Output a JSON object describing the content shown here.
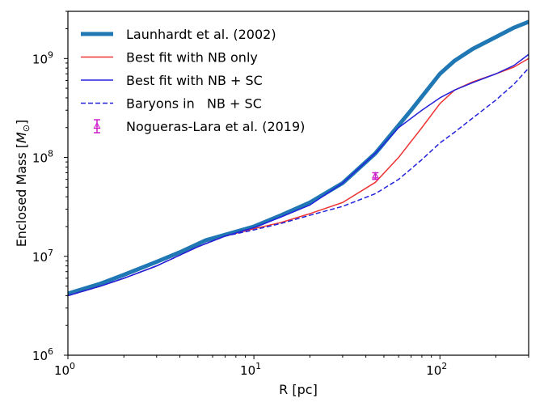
{
  "chart_data": {
    "type": "line",
    "xlabel": "R [pc]",
    "ylabel": "Enclosed Mass [M_⊙]",
    "ylabel_parts": {
      "prefix": "Enclosed Mass [",
      "symbol": "M",
      "subscript": "⊙",
      "suffix": "]"
    },
    "xscale": "log",
    "yscale": "log",
    "xlim": [
      1,
      300
    ],
    "ylim": [
      1000000,
      3000000000
    ],
    "grid": false,
    "legend_position": "upper-left",
    "x_ticks": [
      {
        "value": 1,
        "base": "10",
        "exp": "0"
      },
      {
        "value": 10,
        "base": "10",
        "exp": "1"
      },
      {
        "value": 100,
        "base": "10",
        "exp": "2"
      }
    ],
    "y_ticks": [
      {
        "value": 1000000,
        "base": "10",
        "exp": "6"
      },
      {
        "value": 10000000,
        "base": "10",
        "exp": "7"
      },
      {
        "value": 100000000,
        "base": "10",
        "exp": "8"
      },
      {
        "value": 1000000000,
        "base": "10",
        "exp": "9"
      }
    ],
    "series": [
      {
        "name": "Launhardt et al. (2002)",
        "color": "#1f77b4",
        "style": "thick",
        "x": [
          1,
          1.5,
          2,
          3,
          4,
          5.5,
          7,
          10,
          14,
          20,
          30,
          45,
          70,
          100,
          120,
          150,
          200,
          250,
          300
        ],
        "y": [
          4200000,
          5300000,
          6500000,
          8800000,
          11000000,
          14500000,
          16500000,
          20000000,
          26000000,
          35000000,
          55000000,
          110000000,
          300000000,
          700000000,
          950000000,
          1250000000,
          1650000000,
          2050000000,
          2350000000
        ]
      },
      {
        "name": "Best fit with NB only",
        "color": "#ee3333",
        "style": "solid",
        "x": [
          1,
          1.5,
          2,
          3,
          5,
          7,
          10,
          14,
          20,
          30,
          45,
          60,
          80,
          100,
          120,
          150,
          200,
          250,
          300
        ],
        "y": [
          4000000,
          5000000,
          6000000,
          8000000,
          12500000,
          16000000,
          19000000,
          22000000,
          27000000,
          35000000,
          56000000,
          100000000,
          200000000,
          350000000,
          480000000,
          580000000,
          700000000,
          820000000,
          1000000000
        ]
      },
      {
        "name": "Best fit with NB + SC",
        "color": "#2222dd",
        "style": "solid",
        "x": [
          1,
          1.5,
          2,
          3,
          5,
          7,
          10,
          14,
          20,
          30,
          45,
          60,
          80,
          100,
          120,
          150,
          200,
          250,
          300
        ],
        "y": [
          4000000,
          5000000,
          6000000,
          8000000,
          12500000,
          16000000,
          19500000,
          25000000,
          33000000,
          55000000,
          110000000,
          200000000,
          300000000,
          400000000,
          480000000,
          570000000,
          700000000,
          850000000,
          1100000000
        ]
      },
      {
        "name": "Baryons in   NB + SC",
        "color": "#2222dd",
        "style": "dashed",
        "x": [
          1,
          1.5,
          2,
          3,
          5,
          7,
          10,
          14,
          20,
          30,
          45,
          60,
          80,
          100,
          120,
          150,
          200,
          250,
          300
        ],
        "y": [
          4000000,
          5000000,
          6000000,
          8000000,
          12500000,
          16000000,
          18500000,
          21500000,
          26000000,
          32000000,
          43000000,
          60000000,
          95000000,
          140000000,
          180000000,
          250000000,
          380000000,
          550000000,
          800000000
        ]
      },
      {
        "name": "Nogueras-Lara et al. (2019)",
        "color": "#cc22cc",
        "style": "errorbar-triangle",
        "x": [
          45
        ],
        "y": [
          65000000
        ],
        "yerr_low": [
          60000000
        ],
        "yerr_high": [
          70000000
        ]
      }
    ]
  }
}
